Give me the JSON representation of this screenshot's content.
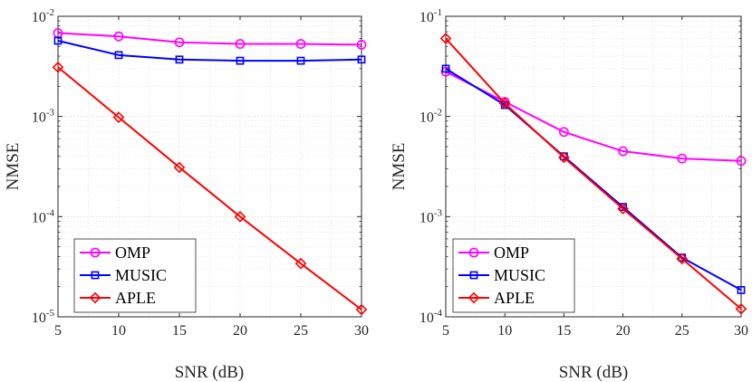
{
  "chart_data": [
    {
      "type": "line",
      "title": "",
      "xlabel": "SNR (dB)",
      "ylabel": "NMSE",
      "yscale": "log",
      "x": [
        5,
        10,
        15,
        20,
        25,
        30
      ],
      "xlim": [
        5,
        30
      ],
      "ylim": [
        1e-05,
        0.01
      ],
      "xticks": [
        "5",
        "10",
        "15",
        "20",
        "25",
        "30"
      ],
      "yticks": [
        {
          "base": "10",
          "exp": "-5",
          "value": 1e-05
        },
        {
          "base": "10",
          "exp": "-4",
          "value": 0.0001
        },
        {
          "base": "10",
          "exp": "-3",
          "value": 0.001
        },
        {
          "base": "10",
          "exp": "-2",
          "value": 0.01
        }
      ],
      "grid": true,
      "legend_position": "bottom-left",
      "series": [
        {
          "name": "OMP",
          "color": "#ff00ff",
          "marker": "circle",
          "values": [
            0.0068,
            0.0063,
            0.0055,
            0.0053,
            0.0053,
            0.0052
          ]
        },
        {
          "name": "MUSIC",
          "color": "#0000ff",
          "marker": "square",
          "values": [
            0.0057,
            0.0041,
            0.0037,
            0.0036,
            0.0036,
            0.0037
          ]
        },
        {
          "name": "APLE",
          "color": "#ff0000",
          "marker": "diamond",
          "values": [
            0.0031,
            0.00098,
            0.00031,
            0.0001,
            3.4e-05,
            1.18e-05
          ]
        }
      ]
    },
    {
      "type": "line",
      "title": "",
      "xlabel": "SNR (dB)",
      "ylabel": "NMSE",
      "yscale": "log",
      "x": [
        5,
        10,
        15,
        20,
        25,
        30
      ],
      "xlim": [
        5,
        30
      ],
      "ylim": [
        0.0001,
        0.1
      ],
      "xticks": [
        "5",
        "10",
        "15",
        "20",
        "25",
        "30"
      ],
      "yticks": [
        {
          "base": "10",
          "exp": "-4",
          "value": 0.0001
        },
        {
          "base": "10",
          "exp": "-3",
          "value": 0.001
        },
        {
          "base": "10",
          "exp": "-2",
          "value": 0.01
        },
        {
          "base": "10",
          "exp": "-1",
          "value": 0.1
        }
      ],
      "grid": true,
      "legend_position": "bottom-left",
      "series": [
        {
          "name": "OMP",
          "color": "#ff00ff",
          "marker": "circle",
          "values": [
            0.028,
            0.014,
            0.007,
            0.0045,
            0.0038,
            0.0036
          ]
        },
        {
          "name": "MUSIC",
          "color": "#0000ff",
          "marker": "square",
          "values": [
            0.03,
            0.013,
            0.004,
            0.00125,
            0.00039,
            0.000185
          ]
        },
        {
          "name": "APLE",
          "color": "#ff0000",
          "marker": "diamond",
          "values": [
            0.06,
            0.0135,
            0.0039,
            0.0012,
            0.00038,
            0.00012
          ]
        }
      ]
    }
  ]
}
